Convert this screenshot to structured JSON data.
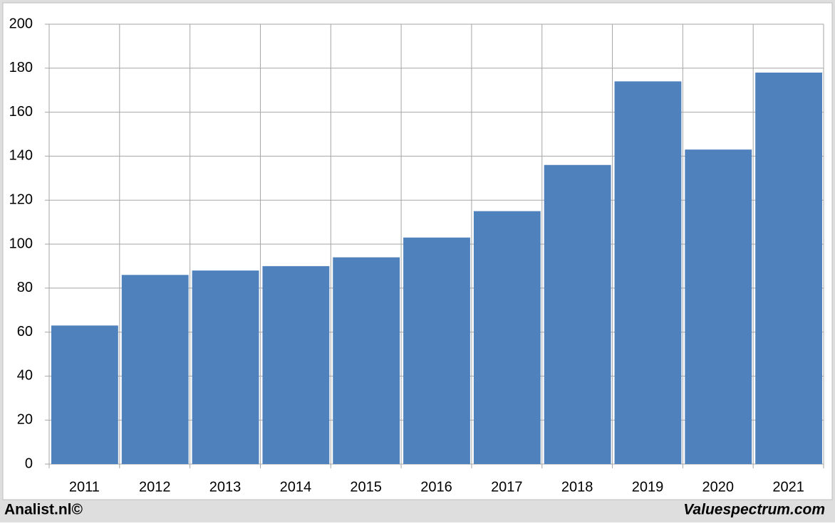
{
  "chart_data": {
    "type": "bar",
    "categories": [
      "2011",
      "2012",
      "2013",
      "2014",
      "2015",
      "2016",
      "2017",
      "2018",
      "2019",
      "2020",
      "2021"
    ],
    "values": [
      63,
      86,
      88,
      90,
      94,
      103,
      115,
      136,
      174,
      143,
      178
    ],
    "color": "#4f81bd",
    "ylim": [
      0,
      200
    ],
    "yticks": [
      0,
      20,
      40,
      60,
      80,
      100,
      120,
      140,
      160,
      180,
      200
    ],
    "grid": true,
    "annotations": [
      "Analist.nl©",
      "Valuespectrum.com"
    ]
  }
}
